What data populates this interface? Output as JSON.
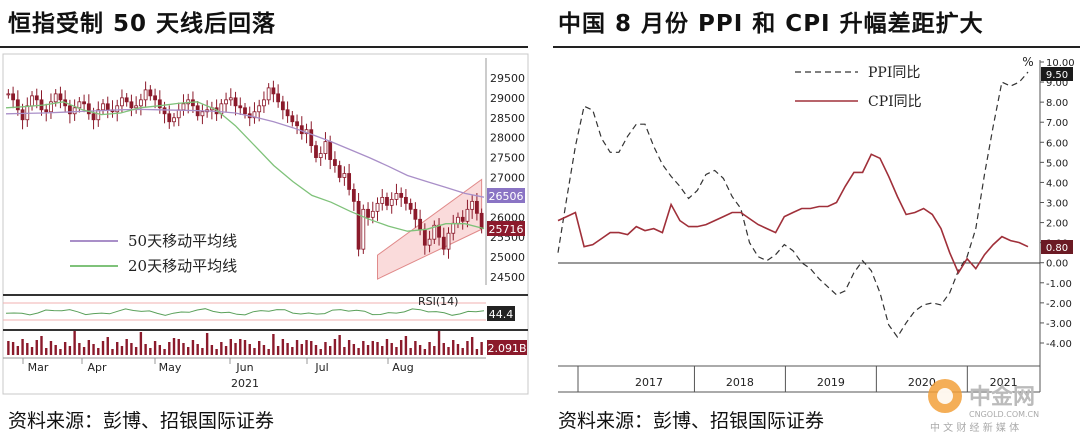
{
  "left": {
    "title": "恒指受制 50 天线后回落",
    "source": "资料来源：彭博、招银国际证券"
  },
  "right": {
    "title": "中国 8 月份 PPI 和 CPI 升幅差距扩大",
    "source": "资料来源：彭博、招银国际证券"
  },
  "watermark": {
    "name": "中金网",
    "url": "CNGOLD.COM.CN",
    "tagline": "中 文 财 经 新 媒 体"
  },
  "chart_data": [
    {
      "type": "candlestick",
      "title": "",
      "y_ticks": [
        "29500",
        "29000",
        "28500",
        "28000",
        "27500",
        "27000",
        "26500",
        "26000",
        "25500",
        "25000",
        "24500"
      ],
      "ylim": [
        24300,
        29900
      ],
      "x_month_labels": [
        "Mar",
        "Apr",
        "May",
        "Jun",
        "Jul",
        "Aug"
      ],
      "year_label": "2021",
      "last_price_tags": {
        "ma50": "26506",
        "close": "25716"
      },
      "legend": [
        "50天移动平均线",
        "20天移动平均线"
      ],
      "colors": {
        "candle": "#8b1a2b",
        "ma50": "#a98fc8",
        "ma20": "#7fc27a",
        "channel": "#f5c6c6"
      },
      "ma50": [
        28600,
        28610,
        28620,
        28640,
        28660,
        28680,
        28700,
        28710,
        28700,
        28690,
        28680,
        28660,
        28620,
        28520,
        28400,
        28250,
        28080,
        27900,
        27700,
        27500,
        27280,
        27050,
        26900,
        26750,
        26600,
        26506
      ],
      "ma20": [
        28750,
        28780,
        28820,
        28900,
        28700,
        28580,
        28620,
        28750,
        28800,
        28860,
        28900,
        28700,
        28300,
        27800,
        27300,
        26900,
        26550,
        26380,
        26150,
        25950,
        25780,
        25650,
        25700,
        25840,
        25840,
        25716
      ],
      "closes": [
        29100,
        28950,
        28700,
        28450,
        28800,
        29050,
        28950,
        28700,
        28650,
        28900,
        29100,
        28950,
        28800,
        28600,
        28750,
        28900,
        28850,
        28600,
        28450,
        28700,
        28850,
        28700,
        28650,
        28800,
        29000,
        28900,
        28750,
        28800,
        28950,
        29200,
        29050,
        28950,
        28750,
        28600,
        28400,
        28500,
        28700,
        28850,
        28950,
        28800,
        28550,
        28650,
        28700,
        28750,
        28600,
        28850,
        28950,
        29000,
        28800,
        28750,
        28600,
        28500,
        28650,
        28800,
        28950,
        29250,
        29100,
        28900,
        28700,
        28550,
        28400,
        28300,
        28100,
        28200,
        27800,
        27500,
        27600,
        27900,
        27450,
        27300,
        27000,
        27100,
        26700,
        26400,
        25200,
        26200,
        26000,
        26150,
        26350,
        26500,
        26300,
        26450,
        26600,
        26500,
        26350,
        26200,
        25950,
        25700,
        25300,
        25450,
        25800,
        25500,
        25200,
        25600,
        25850,
        26000,
        25900,
        26200,
        26400,
        26100,
        25716
      ],
      "rsi": {
        "label": "RSI(14)",
        "value": "44.4"
      },
      "volume": {
        "value": "2.091B"
      }
    },
    {
      "type": "line",
      "title": "",
      "unit": "%",
      "y_ticks": [
        "10.00",
        "9.00",
        "8.00",
        "7.00",
        "6.00",
        "5.00",
        "4.00",
        "3.00",
        "2.00",
        "1.00",
        "0.00",
        "-1.00",
        "-2.00",
        "-3.00",
        "-4.00"
      ],
      "ylim": [
        -4.0,
        10.0
      ],
      "x_labels": [
        "2017",
        "2018",
        "2019",
        "2020",
        "2021"
      ],
      "x_start": 2016.5,
      "x_end": 2021.667,
      "series": [
        {
          "name": "PPI同比",
          "dash": true,
          "color": "#333333",
          "values": [
            0.5,
            3.2,
            5.8,
            7.8,
            7.6,
            6.2,
            5.5,
            5.5,
            6.3,
            6.9,
            6.9,
            5.8,
            4.9,
            4.3,
            3.8,
            3.2,
            3.6,
            4.4,
            4.6,
            4.2,
            3.3,
            2.7,
            1.0,
            0.3,
            0.1,
            0.4,
            0.9,
            0.6,
            0.0,
            -0.3,
            -0.8,
            -1.2,
            -1.6,
            -1.4,
            -0.5,
            0.1,
            -0.4,
            -1.5,
            -3.1,
            -3.7,
            -3.0,
            -2.4,
            -2.1,
            -2.0,
            -2.1,
            -1.5,
            -0.4,
            0.3,
            1.7,
            4.4,
            6.8,
            9.0,
            8.8,
            9.0,
            9.5
          ]
        },
        {
          "name": "CPI同比",
          "dash": false,
          "color": "#a0303a",
          "values": [
            2.1,
            2.3,
            2.5,
            0.8,
            0.9,
            1.2,
            1.5,
            1.5,
            1.4,
            1.8,
            1.6,
            1.7,
            1.5,
            2.9,
            2.1,
            1.8,
            1.8,
            1.9,
            2.1,
            2.3,
            2.5,
            2.5,
            2.2,
            1.9,
            1.7,
            1.5,
            2.3,
            2.5,
            2.7,
            2.7,
            2.8,
            2.8,
            3.0,
            3.8,
            4.5,
            4.5,
            5.4,
            5.2,
            4.3,
            3.3,
            2.4,
            2.5,
            2.7,
            2.4,
            1.7,
            0.5,
            -0.5,
            0.2,
            -0.3,
            0.4,
            0.9,
            1.3,
            1.1,
            1.0,
            0.8
          ]
        }
      ],
      "last_value_tags": {
        "PPI同比": "9.50",
        "CPI同比": "0.80"
      }
    }
  ]
}
